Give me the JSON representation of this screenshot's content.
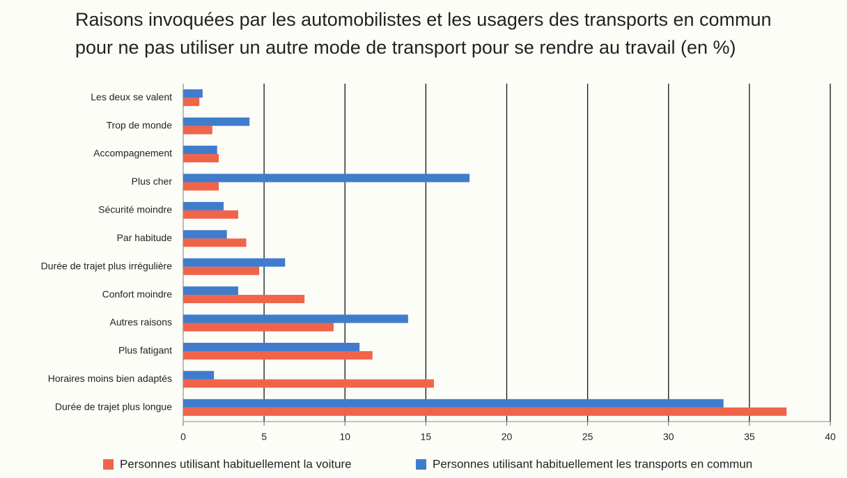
{
  "chart_data": {
    "type": "hbar",
    "title": [
      "Raisons invoquées par les automobilistes et les usagers des transports en commun",
      "pour ne pas utiliser un autre mode de transport pour se rendre au travail (en %)"
    ],
    "categories": [
      "Les deux se valent",
      "Trop de monde",
      "Accompagnement",
      "Plus cher",
      "Sécurité moindre",
      "Par habitude",
      "Durée de trajet plus irrégulière",
      "Confort moindre",
      "Autres raisons",
      "Plus fatigant",
      "Horaires moins bien adaptés",
      "Durée de trajet plus longue"
    ],
    "series": [
      {
        "name": "Personnes utilisant habituellement la voiture",
        "color": "#f0644a",
        "values": [
          1.0,
          1.8,
          2.2,
          2.2,
          3.4,
          3.9,
          4.7,
          7.5,
          9.3,
          11.7,
          15.5,
          37.3
        ]
      },
      {
        "name": "Personnes utilisant habituellement les transports en commun",
        "color": "#3f7ccc",
        "values": [
          1.2,
          4.1,
          2.1,
          17.7,
          2.5,
          2.7,
          6.3,
          3.4,
          13.9,
          10.9,
          1.9,
          33.4
        ]
      }
    ],
    "xlim": [
      0,
      40
    ],
    "xticks": [
      0,
      5,
      10,
      15,
      20,
      25,
      30,
      35,
      40
    ],
    "grid": true
  }
}
